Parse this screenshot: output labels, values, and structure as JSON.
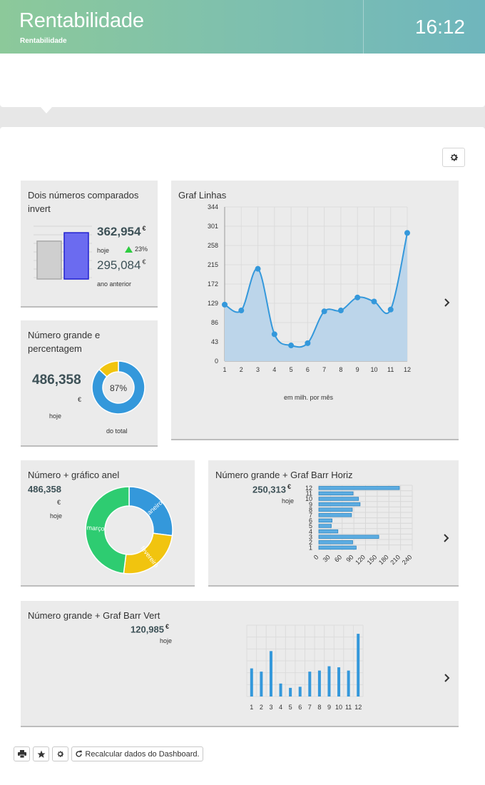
{
  "header": {
    "title": "Rentabilidade",
    "subtitle": "Rentabilidade",
    "clock": "16:12"
  },
  "colors": {
    "accent": "#3d8fd6",
    "green": "#2ecc71",
    "yellow": "#f1c40f",
    "text_dark": "#3d5157"
  },
  "widgets": {
    "compare": {
      "title": "Dois números comparados invert",
      "value_today": "362,954",
      "currency": "€",
      "label_today": "hoje",
      "change": "23%",
      "value_prev": "295,084",
      "label_prev": "ano anterior",
      "chart_data": {
        "type": "bar",
        "categories": [
          "ano anterior",
          "hoje"
        ],
        "values": [
          295.084,
          362.954
        ],
        "ylim": [
          0,
          400
        ]
      }
    },
    "percent": {
      "title": "Número grande e percentagem",
      "value": "486,358",
      "currency": "€",
      "label_today": "hoje",
      "percent_label": "87%",
      "label_total": "do total",
      "chart_data": {
        "type": "pie",
        "values": [
          87,
          13
        ]
      }
    },
    "line": {
      "title": "Graf Linhas",
      "xlabel": "em milh. por mês",
      "chart_data": {
        "type": "area",
        "x": [
          "1",
          "2",
          "3",
          "4",
          "5",
          "6",
          "7",
          "8",
          "9",
          "10",
          "11",
          "12"
        ],
        "values": [
          126,
          113,
          206,
          60,
          35,
          40,
          111,
          113,
          142,
          133,
          115,
          286
        ],
        "yticks": [
          "0",
          "43",
          "86",
          "129",
          "172",
          "215",
          "258",
          "301",
          "344"
        ],
        "ylim": [
          0,
          344
        ],
        "grid": true
      }
    },
    "donut": {
      "title": "Número + gráfico anel",
      "value": "486,358",
      "currency": "€",
      "label_today": "hoje",
      "chart_data": {
        "type": "pie",
        "categories": [
          "janeiro",
          "fevereiro",
          "março"
        ],
        "values": [
          27,
          25,
          48
        ],
        "colors": [
          "#3498db",
          "#f1c40f",
          "#2ecc71"
        ]
      }
    },
    "hbar": {
      "title": "Número grande + Graf Barr Horiz",
      "value": "250,313",
      "currency": "€",
      "label_today": "hoje",
      "chart_data": {
        "type": "bar",
        "orientation": "horizontal",
        "categories": [
          "12",
          "11",
          "10",
          "9",
          "8",
          "7",
          "6",
          "5",
          "4",
          "3",
          "2",
          "1"
        ],
        "values": [
          207,
          88,
          102,
          106,
          86,
          84,
          34,
          32,
          49,
          154,
          87,
          96
        ],
        "xticks": [
          "0",
          "30",
          "60",
          "90",
          "120",
          "150",
          "180",
          "210",
          "240"
        ],
        "xlim": [
          0,
          240
        ],
        "grid": true
      }
    },
    "vbar": {
      "title": "Número grande + Graf Barr Vert",
      "value": "120,985",
      "currency": "€",
      "label_today": "hoje",
      "chart_data": {
        "type": "bar",
        "categories": [
          "1",
          "2",
          "3",
          "4",
          "5",
          "6",
          "7",
          "8",
          "9",
          "10",
          "11",
          "12"
        ],
        "values": [
          26,
          23,
          42,
          12,
          8,
          9,
          23,
          24,
          28,
          27,
          24,
          58
        ],
        "ylim": [
          0,
          66
        ],
        "grid": true
      }
    }
  },
  "footer": {
    "recalc_label": "Recalcular dados do Dashboard."
  }
}
